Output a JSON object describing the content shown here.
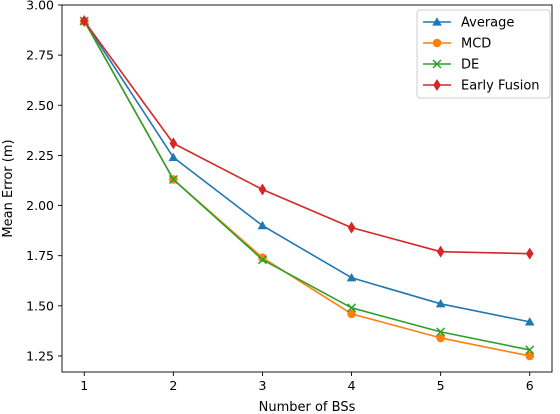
{
  "chart_data": {
    "type": "line",
    "xlabel": "Number of BSs",
    "ylabel": "Mean Error (m)",
    "x": [
      1,
      2,
      3,
      4,
      5,
      6
    ],
    "xlim": [
      0.75,
      6.25
    ],
    "ylim": [
      1.17,
      3.0
    ],
    "xticks": [
      "1",
      "2",
      "3",
      "4",
      "5",
      "6"
    ],
    "yticks": [
      "1.25",
      "1.50",
      "1.75",
      "2.00",
      "2.25",
      "2.50",
      "2.75",
      "3.00"
    ],
    "grid": false,
    "legend_position": "top-right",
    "series": [
      {
        "name": "Average",
        "color": "#1f77b4",
        "marker": "triangle",
        "values": [
          2.92,
          2.24,
          1.9,
          1.64,
          1.51,
          1.42
        ]
      },
      {
        "name": "MCD",
        "color": "#ff7f0e",
        "marker": "circle",
        "values": [
          2.92,
          2.13,
          1.74,
          1.46,
          1.34,
          1.25
        ]
      },
      {
        "name": "DE",
        "color": "#2ca02c",
        "marker": "x",
        "values": [
          2.92,
          2.13,
          1.73,
          1.49,
          1.37,
          1.28
        ]
      },
      {
        "name": "Early Fusion",
        "color": "#d62728",
        "marker": "diamond",
        "values": [
          2.92,
          2.31,
          2.08,
          1.89,
          1.77,
          1.76
        ]
      }
    ]
  }
}
